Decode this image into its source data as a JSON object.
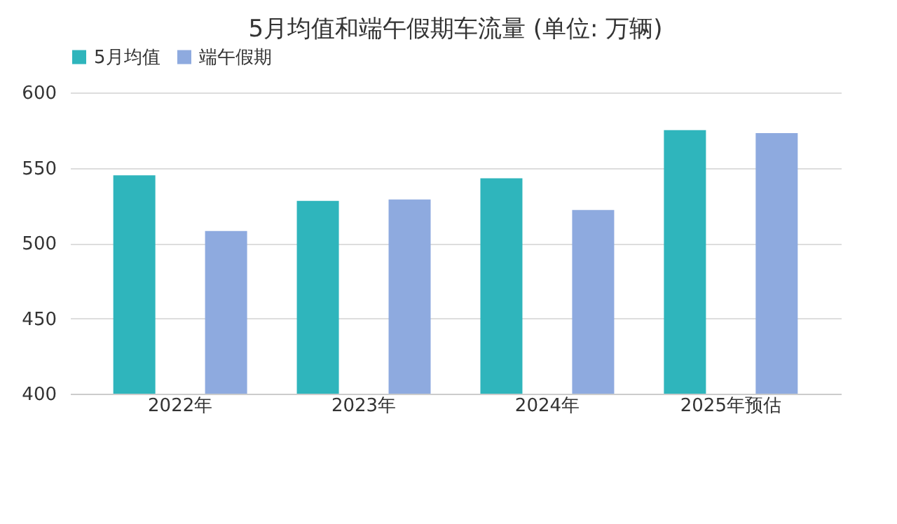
{
  "chart_data": {
    "type": "bar",
    "title": "5月均值和端午假期车流量 (单位: 万辆)",
    "categories": [
      "2022年",
      "2023年",
      "2024年",
      "2025年预估"
    ],
    "series": [
      {
        "name": "5月均值",
        "color": "#2fb5bc",
        "values": [
          545,
          528,
          543,
          575
        ]
      },
      {
        "name": "端午假期",
        "color": "#8eaadf",
        "values": [
          508,
          529,
          522,
          573
        ]
      }
    ],
    "ylim": [
      400,
      600
    ],
    "yticks": [
      400,
      450,
      500,
      550,
      600
    ],
    "grid": "y",
    "legend": "top"
  }
}
